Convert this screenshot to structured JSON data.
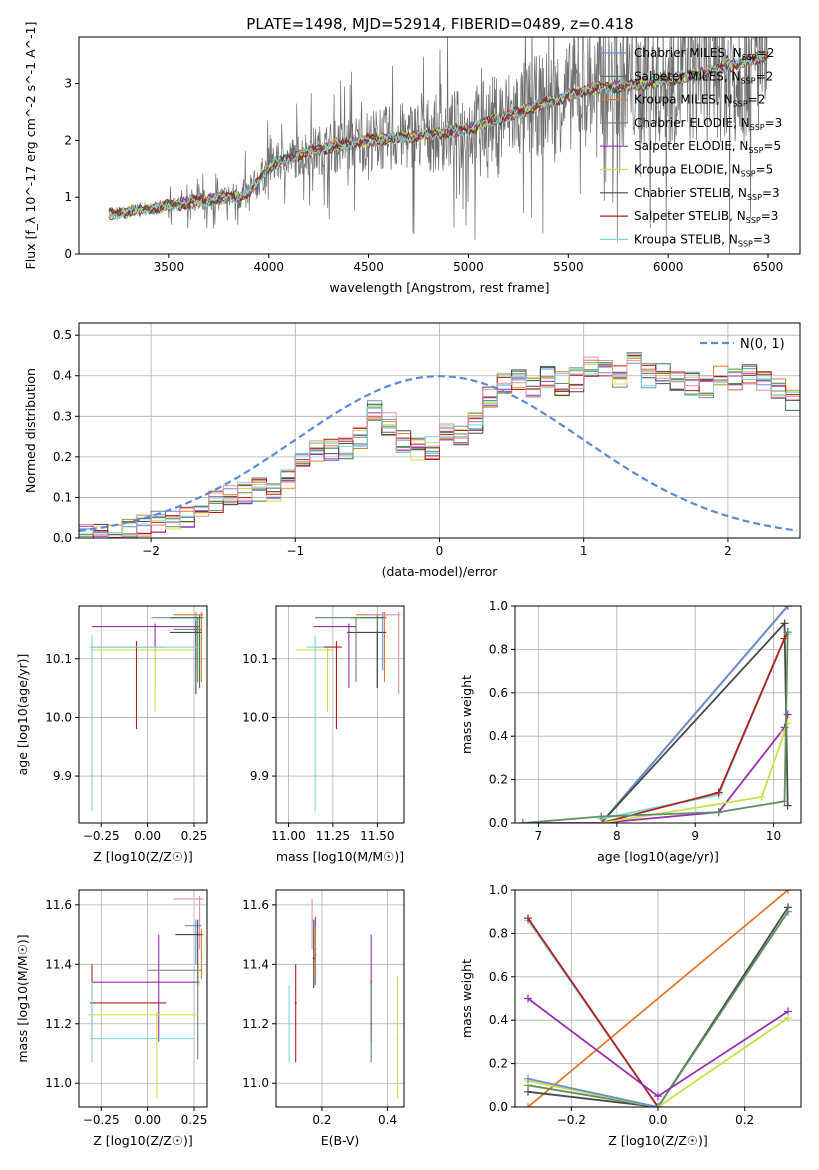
{
  "title": "PLATE=1498, MJD=52914, FIBERID=0489, z=0.418",
  "colors": {
    "Chabrier MILES": "#6a8fd0",
    "Salpeter MILES": "#2e7d4f",
    "Kroupa MILES": "#e07b2e",
    "Chabrier ELODIE": "#5f8f5f",
    "Salpeter ELODIE": "#9a2fb0",
    "Kroupa ELODIE": "#c8e04a",
    "Chabrier STELIB": "#4a4a4a",
    "Salpeter STELIB": "#b01e1e",
    "Kroupa STELIB": "#7fd4d8",
    "hist_extra_pink": "#e88fa0",
    "gaussian": "#5b8ad6",
    "data": "#6e6e6e"
  },
  "chart_data": [
    {
      "id": "spectrum",
      "type": "line",
      "xlabel": "wavelength [Angstrom, rest frame]",
      "ylabel": "Flux [f_λ 10^-17 erg cm^-2 s^-1 A^-1]",
      "xlim": [
        3050,
        6660
      ],
      "ylim": [
        0,
        3.82
      ],
      "xticks": [
        3500,
        4000,
        4500,
        5000,
        5500,
        6000,
        6500
      ],
      "yticks": [
        0,
        1,
        2,
        3
      ],
      "grid": false,
      "legend_position": "upper right",
      "legend": [
        {
          "label": "Chabrier MILES, N",
          "sub": "SSP",
          "suffix": "=2",
          "key": "Chabrier MILES"
        },
        {
          "label": "Salpeter MILES, N",
          "sub": "SSP",
          "suffix": "=2",
          "key": "Salpeter MILES"
        },
        {
          "label": "Kroupa MILES, N",
          "sub": "SSP",
          "suffix": "=2",
          "key": "Kroupa MILES"
        },
        {
          "label": "Chabrier ELODIE, N",
          "sub": "SSP",
          "suffix": "=3",
          "key": "Chabrier ELODIE"
        },
        {
          "label": "Salpeter ELODIE, N",
          "sub": "SSP",
          "suffix": "=5",
          "key": "Salpeter ELODIE"
        },
        {
          "label": "Kroupa ELODIE, N",
          "sub": "SSP",
          "suffix": "=5",
          "key": "Kroupa ELODIE"
        },
        {
          "label": "Chabrier STELIB, N",
          "sub": "SSP",
          "suffix": "=3",
          "key": "Chabrier STELIB"
        },
        {
          "label": "Salpeter STELIB, N",
          "sub": "SSP",
          "suffix": "=3",
          "key": "Salpeter STELIB"
        },
        {
          "label": "Kroupa STELIB, N",
          "sub": "SSP",
          "suffix": "=3",
          "key": "Kroupa STELIB"
        }
      ],
      "data_wavelength_range": [
        3200,
        6500
      ],
      "model_anchor_wavelength": [
        3200,
        3300,
        3500,
        3700,
        3900,
        4000,
        4200,
        4500,
        4800,
        5000,
        5300,
        5600,
        5900,
        6200,
        6500
      ],
      "model_anchor_flux": [
        0.7,
        0.75,
        0.85,
        0.95,
        1.05,
        1.55,
        1.8,
        2.0,
        2.1,
        2.2,
        2.55,
        2.9,
        3.0,
        3.2,
        3.5
      ]
    },
    {
      "id": "residuals",
      "type": "histogram",
      "xlabel": "(data-model)/error",
      "ylabel": "Normed distribution",
      "xlim": [
        -2.5,
        2.5
      ],
      "ylim": [
        0,
        0.53
      ],
      "xticks": [
        -2,
        -1,
        0,
        1,
        2
      ],
      "yticks": [
        0.0,
        0.1,
        0.2,
        0.3,
        0.4,
        0.5
      ],
      "grid": true,
      "legend_position": "upper right",
      "legend": [
        {
          "label": "N(0, 1)",
          "key": "gaussian"
        }
      ],
      "bin_width": 0.1,
      "bin_start": -2.5,
      "base_bins": [
        0.01,
        0.01,
        0.01,
        0.02,
        0.03,
        0.04,
        0.04,
        0.05,
        0.06,
        0.09,
        0.1,
        0.11,
        0.12,
        0.12,
        0.14,
        0.19,
        0.21,
        0.22,
        0.22,
        0.25,
        0.31,
        0.28,
        0.24,
        0.22,
        0.22,
        0.27,
        0.25,
        0.28,
        0.35,
        0.38,
        0.39,
        0.37,
        0.4,
        0.38,
        0.39,
        0.42,
        0.42,
        0.4,
        0.44,
        0.4,
        0.41,
        0.38,
        0.38,
        0.37,
        0.4,
        0.39,
        0.4,
        0.39,
        0.37,
        0.34,
        0.39,
        0.38,
        0.33,
        0.34,
        0.3,
        0.3,
        0.28,
        0.25,
        0.22,
        0.22,
        0.21,
        0.19,
        0.18,
        0.19,
        0.17,
        0.15,
        0.14,
        0.13,
        0.12,
        0.1,
        0.09,
        0.08,
        0.07,
        0.08,
        0.07,
        0.09,
        0.09,
        0.08,
        0.07,
        0.06,
        0.06,
        0.05,
        0.04,
        0.03,
        0.03,
        0.03,
        0.03,
        0.02,
        0.02,
        0.02,
        0.02,
        0.02,
        0.01,
        0.01,
        0.01,
        0.01,
        0.01,
        0.01,
        0.01,
        0.01
      ]
    },
    {
      "id": "age_vs_Z",
      "type": "scatter",
      "xlabel": "Z [log10(Z/Z☉)]",
      "ylabel": "age [log10(age/yr)]",
      "xlim": [
        -0.37,
        0.32
      ],
      "ylim": [
        9.82,
        10.19
      ],
      "xticks": [
        -0.25,
        0.0,
        0.25
      ],
      "yticks": [
        9.9,
        10.0,
        10.1
      ],
      "grid": true,
      "points": [
        {
          "key": "Chabrier MILES",
          "x": 0.26,
          "y": 10.17,
          "xl": 0.02,
          "xh": 0.28,
          "yl": 10.08,
          "yh": 10.18
        },
        {
          "key": "Salpeter MILES",
          "x": 0.28,
          "y": 10.17,
          "xl": 0.12,
          "xh": 0.3,
          "yl": 10.05,
          "yh": 10.175
        },
        {
          "key": "Kroupa MILES",
          "x": 0.29,
          "y": 10.175,
          "xl": 0.14,
          "xh": 0.3,
          "yl": 10.06,
          "yh": 10.18
        },
        {
          "key": "Chabrier ELODIE",
          "x": 0.27,
          "y": 10.15,
          "xl": 0.14,
          "xh": 0.29,
          "yl": 10.06,
          "yh": 10.17
        },
        {
          "key": "Salpeter ELODIE",
          "x": 0.04,
          "y": 10.155,
          "xl": -0.3,
          "xh": 0.28,
          "yl": 10.05,
          "yh": 10.16
        },
        {
          "key": "Kroupa ELODIE",
          "x": 0.04,
          "y": 10.115,
          "xl": -0.3,
          "xh": 0.25,
          "yl": 10.01,
          "yh": 10.12
        },
        {
          "key": "Chabrier STELIB",
          "x": 0.26,
          "y": 10.145,
          "xl": 0.12,
          "xh": 0.29,
          "yl": 10.04,
          "yh": 10.165
        },
        {
          "key": "Salpeter STELIB",
          "x": -0.06,
          "y": 10.12,
          "xl": -0.3,
          "xh": 0.1,
          "yl": 9.98,
          "yh": 10.13
        },
        {
          "key": "Kroupa STELIB",
          "x": -0.3,
          "y": 10.12,
          "xl": -0.31,
          "xh": 0.28,
          "yl": 9.84,
          "yh": 10.14
        }
      ]
    },
    {
      "id": "age_vs_mass",
      "type": "scatter",
      "xlabel": "mass [log10(M/M☉)]",
      "ylabel": "",
      "xlim": [
        10.93,
        11.65
      ],
      "ylim": [
        9.82,
        10.19
      ],
      "xticks": [
        11.0,
        11.25,
        11.5
      ],
      "yticks": [
        9.9,
        10.0,
        10.1
      ],
      "grid": true,
      "points": [
        {
          "key": "Chabrier MILES",
          "x": 11.53,
          "y": 10.17,
          "xl": 11.4,
          "xh": 11.55,
          "yl": 10.08,
          "yh": 10.18
        },
        {
          "key": "Salpeter MILES",
          "x": 11.5,
          "y": 10.17,
          "xl": 11.35,
          "xh": 11.55,
          "yl": 10.05,
          "yh": 10.175
        },
        {
          "key": "Kroupa MILES",
          "x": 11.54,
          "y": 10.175,
          "xl": 11.38,
          "xh": 11.56,
          "yl": 10.06,
          "yh": 10.18
        },
        {
          "key": "Chabrier ELODIE",
          "x": 11.38,
          "y": 10.17,
          "xl": 11.15,
          "xh": 11.38,
          "yl": 10.06,
          "yh": 10.17
        },
        {
          "key": "Salpeter ELODIE",
          "x": 11.34,
          "y": 10.155,
          "xl": 11.14,
          "xh": 11.38,
          "yl": 10.05,
          "yh": 10.16
        },
        {
          "key": "Kroupa ELODIE",
          "x": 11.22,
          "y": 10.115,
          "xl": 11.04,
          "xh": 11.25,
          "yl": 10.01,
          "yh": 10.12
        },
        {
          "key": "Chabrier STELIB",
          "x": 11.5,
          "y": 10.145,
          "xl": 11.33,
          "xh": 11.55,
          "yl": 10.05,
          "yh": 10.145
        },
        {
          "key": "Salpeter STELIB",
          "x": 11.27,
          "y": 10.12,
          "xl": 11.15,
          "xh": 11.3,
          "yl": 9.98,
          "yh": 10.13
        },
        {
          "key": "Kroupa STELIB",
          "x": 11.15,
          "y": 10.12,
          "xl": 11.1,
          "xh": 11.2,
          "yl": 9.84,
          "yh": 10.14
        },
        {
          "key": "hist_extra_pink",
          "x": 11.62,
          "y": 10.175,
          "xl": 11.45,
          "xh": 11.63,
          "yl": 10.04,
          "yh": 10.18
        }
      ]
    },
    {
      "id": "weight_vs_age",
      "type": "line",
      "xlabel": "age [log10(age/yr)]",
      "ylabel": "mass weight",
      "xlim": [
        6.7,
        10.35
      ],
      "ylim": [
        0,
        1.0
      ],
      "xticks": [
        7,
        8,
        9,
        10
      ],
      "yticks": [
        0.0,
        0.2,
        0.4,
        0.6,
        0.8,
        1.0
      ],
      "grid": true,
      "series": [
        {
          "key": "Kroupa MILES",
          "x": [
            7.8,
            10.18
          ],
          "y": [
            0.0,
            1.0
          ]
        },
        {
          "key": "Salpeter MILES",
          "x": [
            7.8,
            10.18
          ],
          "y": [
            0.0,
            1.0
          ]
        },
        {
          "key": "Chabrier MILES",
          "x": [
            7.8,
            10.18
          ],
          "y": [
            0.0,
            1.0
          ]
        },
        {
          "key": "Chabrier STELIB",
          "x": [
            7.8,
            10.14,
            10.18
          ],
          "y": [
            0.0,
            0.92,
            0.08
          ]
        },
        {
          "key": "Kroupa STELIB",
          "x": [
            7.8,
            9.3,
            10.14,
            10.18
          ],
          "y": [
            0.02,
            0.13,
            0.85,
            0.87
          ]
        },
        {
          "key": "Salpeter STELIB",
          "x": [
            7.8,
            9.3,
            10.14,
            10.18
          ],
          "y": [
            0.0,
            0.14,
            0.85,
            0.88
          ]
        },
        {
          "key": "Salpeter ELODIE",
          "x": [
            6.8,
            7.8,
            9.3,
            10.14,
            10.18
          ],
          "y": [
            0.0,
            0.0,
            0.05,
            0.44,
            0.5
          ]
        },
        {
          "key": "Kroupa ELODIE",
          "x": [
            7.8,
            9.85,
            10.14,
            10.18
          ],
          "y": [
            0.0,
            0.12,
            0.42,
            0.46
          ]
        },
        {
          "key": "Chabrier ELODIE",
          "x": [
            6.8,
            7.8,
            9.3,
            10.14,
            10.18
          ],
          "y": [
            0.0,
            0.03,
            0.05,
            0.1,
            0.88
          ]
        }
      ]
    },
    {
      "id": "mass_vs_Z",
      "type": "scatter",
      "xlabel": "Z [log10(Z/Z☉)]",
      "ylabel": "mass [log10(M/M☉)]",
      "xlim": [
        -0.37,
        0.32
      ],
      "ylim": [
        10.92,
        11.65
      ],
      "xticks": [
        -0.25,
        0.0,
        0.25
      ],
      "yticks": [
        11.0,
        11.2,
        11.4,
        11.6
      ],
      "grid": true,
      "points": [
        {
          "key": "hist_extra_pink",
          "x": 0.28,
          "y": 11.62,
          "xl": 0.14,
          "xh": 0.3,
          "yl": 11.45,
          "yh": 11.63
        },
        {
          "key": "Chabrier MILES",
          "x": 0.26,
          "y": 11.53,
          "xl": 0.2,
          "xh": 0.29,
          "yl": 11.4,
          "yh": 11.55
        },
        {
          "key": "Kroupa MILES",
          "x": 0.29,
          "y": 11.5,
          "xl": 0.15,
          "xh": 0.3,
          "yl": 11.35,
          "yh": 11.52
        },
        {
          "key": "Chabrier STELIB",
          "x": 0.27,
          "y": 11.5,
          "xl": 0.15,
          "xh": 0.29,
          "yl": 11.33,
          "yh": 11.55
        },
        {
          "key": "Salpeter ELODIE",
          "x": 0.06,
          "y": 11.34,
          "xl": -0.3,
          "xh": 0.28,
          "yl": 11.14,
          "yh": 11.5
        },
        {
          "key": "Chabrier ELODIE",
          "x": 0.27,
          "y": 11.38,
          "xl": 0.0,
          "xh": 0.29,
          "yl": 11.08,
          "yh": 11.4
        },
        {
          "key": "Salpeter STELIB",
          "x": -0.3,
          "y": 11.27,
          "xl": -0.31,
          "xh": 0.1,
          "yl": 11.15,
          "yh": 11.4
        },
        {
          "key": "Kroupa ELODIE",
          "x": 0.05,
          "y": 11.23,
          "xl": -0.32,
          "xh": 0.27,
          "yl": 10.95,
          "yh": 11.24
        },
        {
          "key": "Kroupa STELIB",
          "x": -0.3,
          "y": 11.15,
          "xl": -0.31,
          "xh": 0.25,
          "yl": 11.07,
          "yh": 11.34
        }
      ]
    },
    {
      "id": "mass_vs_EBV",
      "type": "scatter",
      "xlabel": "E(B-V)",
      "ylabel": "",
      "xlim": [
        0.06,
        0.45
      ],
      "ylim": [
        10.92,
        11.65
      ],
      "xticks": [
        0.2,
        0.4
      ],
      "yticks": [
        11.0,
        11.2,
        11.4,
        11.6
      ],
      "grid": true,
      "points": [
        {
          "key": "hist_extra_pink",
          "x": 0.17,
          "y": 11.55,
          "yl": 11.45,
          "yh": 11.62
        },
        {
          "key": "Salpeter ELODIE",
          "x": 0.18,
          "y": 11.45,
          "yl": 11.33,
          "yh": 11.56
        },
        {
          "key": "Chabrier MILES",
          "x": 0.18,
          "y": 11.43,
          "yl": 11.33,
          "yh": 11.53
        },
        {
          "key": "Kroupa MILES",
          "x": 0.18,
          "y": 11.43,
          "yl": 11.35,
          "yh": 11.52
        },
        {
          "key": "Chabrier STELIB",
          "x": 0.175,
          "y": 11.42,
          "yl": 11.32,
          "yh": 11.55
        },
        {
          "key": "Salpeter STELIB",
          "x": 0.12,
          "y": 11.27,
          "yl": 11.07,
          "yh": 11.4
        },
        {
          "key": "Kroupa STELIB",
          "x": 0.1,
          "y": 11.2,
          "yl": 11.07,
          "yh": 11.33
        },
        {
          "key": "Salpeter ELODIE",
          "x": 0.35,
          "y": 11.34,
          "yl": 11.14,
          "yh": 11.5
        },
        {
          "key": "Chabrier ELODIE",
          "x": 0.35,
          "y": 11.2,
          "yl": 11.07,
          "yh": 11.34
        },
        {
          "key": "Kroupa ELODIE",
          "x": 0.43,
          "y": 11.15,
          "yl": 10.95,
          "yh": 11.36
        }
      ]
    },
    {
      "id": "weight_vs_Z",
      "type": "line",
      "xlabel": "Z [log10(Z/Z☉)]",
      "ylabel": "mass weight",
      "xlim": [
        -0.33,
        0.33
      ],
      "ylim": [
        0,
        1.0
      ],
      "xticks": [
        -0.2,
        0.0,
        0.2
      ],
      "yticks": [
        0.0,
        0.2,
        0.4,
        0.6,
        0.8,
        1.0
      ],
      "grid": true,
      "series": [
        {
          "key": "Kroupa MILES",
          "x": [
            -0.3,
            0.3
          ],
          "y": [
            0.0,
            1.0
          ]
        },
        {
          "key": "Chabrier STELIB",
          "x": [
            -0.3,
            0.0,
            0.3
          ],
          "y": [
            0.07,
            0.0,
            0.92
          ]
        },
        {
          "key": "Chabrier ELODIE",
          "x": [
            -0.3,
            0.0,
            0.3
          ],
          "y": [
            0.1,
            0.0,
            0.9
          ]
        },
        {
          "key": "Kroupa STELIB",
          "x": [
            -0.3,
            0.0
          ],
          "y": [
            0.86,
            0.0
          ]
        },
        {
          "key": "Salpeter STELIB",
          "x": [
            -0.3,
            0.0
          ],
          "y": [
            0.87,
            0.0
          ]
        },
        {
          "key": "Salpeter ELODIE",
          "x": [
            -0.3,
            0.0,
            0.3
          ],
          "y": [
            0.5,
            0.05,
            0.44
          ]
        },
        {
          "key": "Kroupa ELODIE",
          "x": [
            -0.3,
            0.0,
            0.3
          ],
          "y": [
            0.12,
            0.0,
            0.41
          ]
        },
        {
          "key": "Chabrier MILES",
          "x": [
            -0.3,
            0.0
          ],
          "y": [
            0.13,
            0.0
          ]
        }
      ]
    }
  ]
}
